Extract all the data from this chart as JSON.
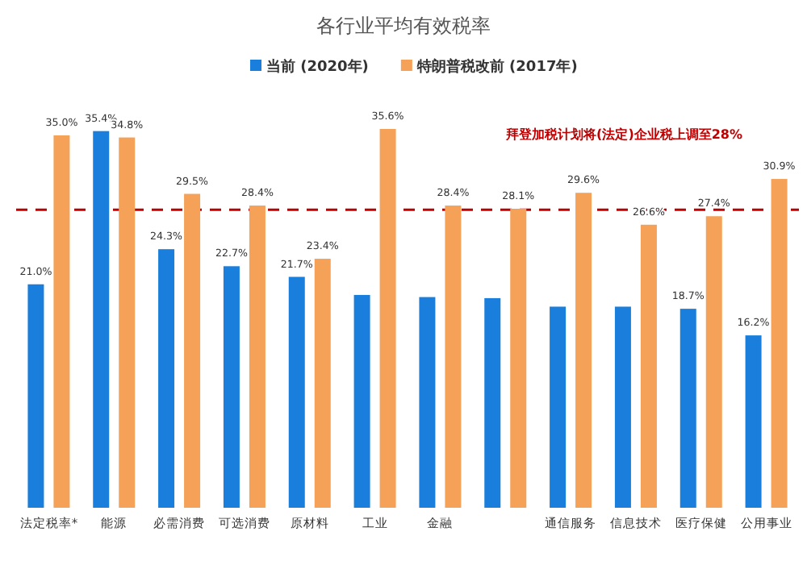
{
  "chart_data": {
    "type": "bar",
    "title": "各行业平均有效税率",
    "categories": [
      "法定税率*",
      "能源",
      "必需消费",
      "可选消费",
      "原材料",
      "工业",
      "金融",
      null,
      "通信服务",
      "信息技术",
      "医疗保健",
      "公用事业"
    ],
    "series": [
      {
        "name": "当前 (2020年)",
        "color": "#1a7fdc",
        "values": [
          21.0,
          35.4,
          24.3,
          22.7,
          21.7,
          20.0,
          19.8,
          19.7,
          18.9,
          18.9,
          18.7,
          16.2
        ],
        "value_labels": [
          "21.0%",
          "35.4%",
          "24.3%",
          "22.7%",
          "21.7%",
          null,
          null,
          null,
          null,
          null,
          "18.7%",
          "16.2%"
        ]
      },
      {
        "name": "特朗普税改前 (2017年)",
        "color": "#f5a157",
        "values": [
          35.0,
          34.8,
          29.5,
          28.4,
          23.4,
          35.6,
          28.4,
          28.1,
          29.6,
          26.6,
          27.4,
          30.9
        ],
        "value_labels": [
          "35.0%",
          "34.8%",
          "29.5%",
          "28.4%",
          "23.4%",
          "35.6%",
          "28.4%",
          "28.1%",
          "29.6%",
          "26.6%",
          "27.4%",
          "30.9%"
        ]
      }
    ],
    "ref_lines": [
      {
        "axis": "y",
        "value": 28,
        "label": "拜登加税计划将(法定)企业税上调至28%",
        "color": "#c00000",
        "line_style": "dashed"
      }
    ],
    "legend": "top"
  }
}
